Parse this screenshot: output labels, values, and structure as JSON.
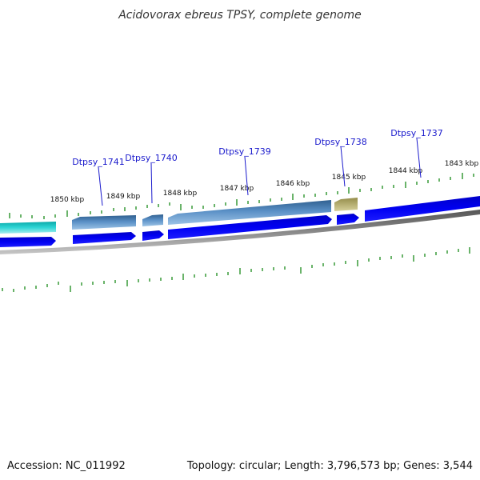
{
  "title": "Acidovorax ebreus TPSY, complete genome",
  "footer": {
    "accession": "Accession: NC_011992",
    "summary": "Topology: circular; Length: 3,796,573 bp; Genes: 3,544"
  },
  "scale_labels": [
    "1850 kbp",
    "1849 kbp",
    "1848 kbp",
    "1847 kbp",
    "1846 kbp",
    "1845 kbp",
    "1844 kbp",
    "1843 kbp"
  ],
  "gene_labels": [
    "Dtpsy_1741",
    "Dtpsy_1740",
    "Dtpsy_1739",
    "Dtpsy_1738",
    "Dtpsy_1737"
  ],
  "colors": {
    "cyan_gene": "#19c7c7",
    "steel_gene": "#4a7fb5",
    "olive_gene": "#b8b070",
    "blue_gene": "#0000ee",
    "backbone": "#7a7a7a",
    "ticks": "#1a8a1a",
    "label_color": "#1a1acc"
  }
}
